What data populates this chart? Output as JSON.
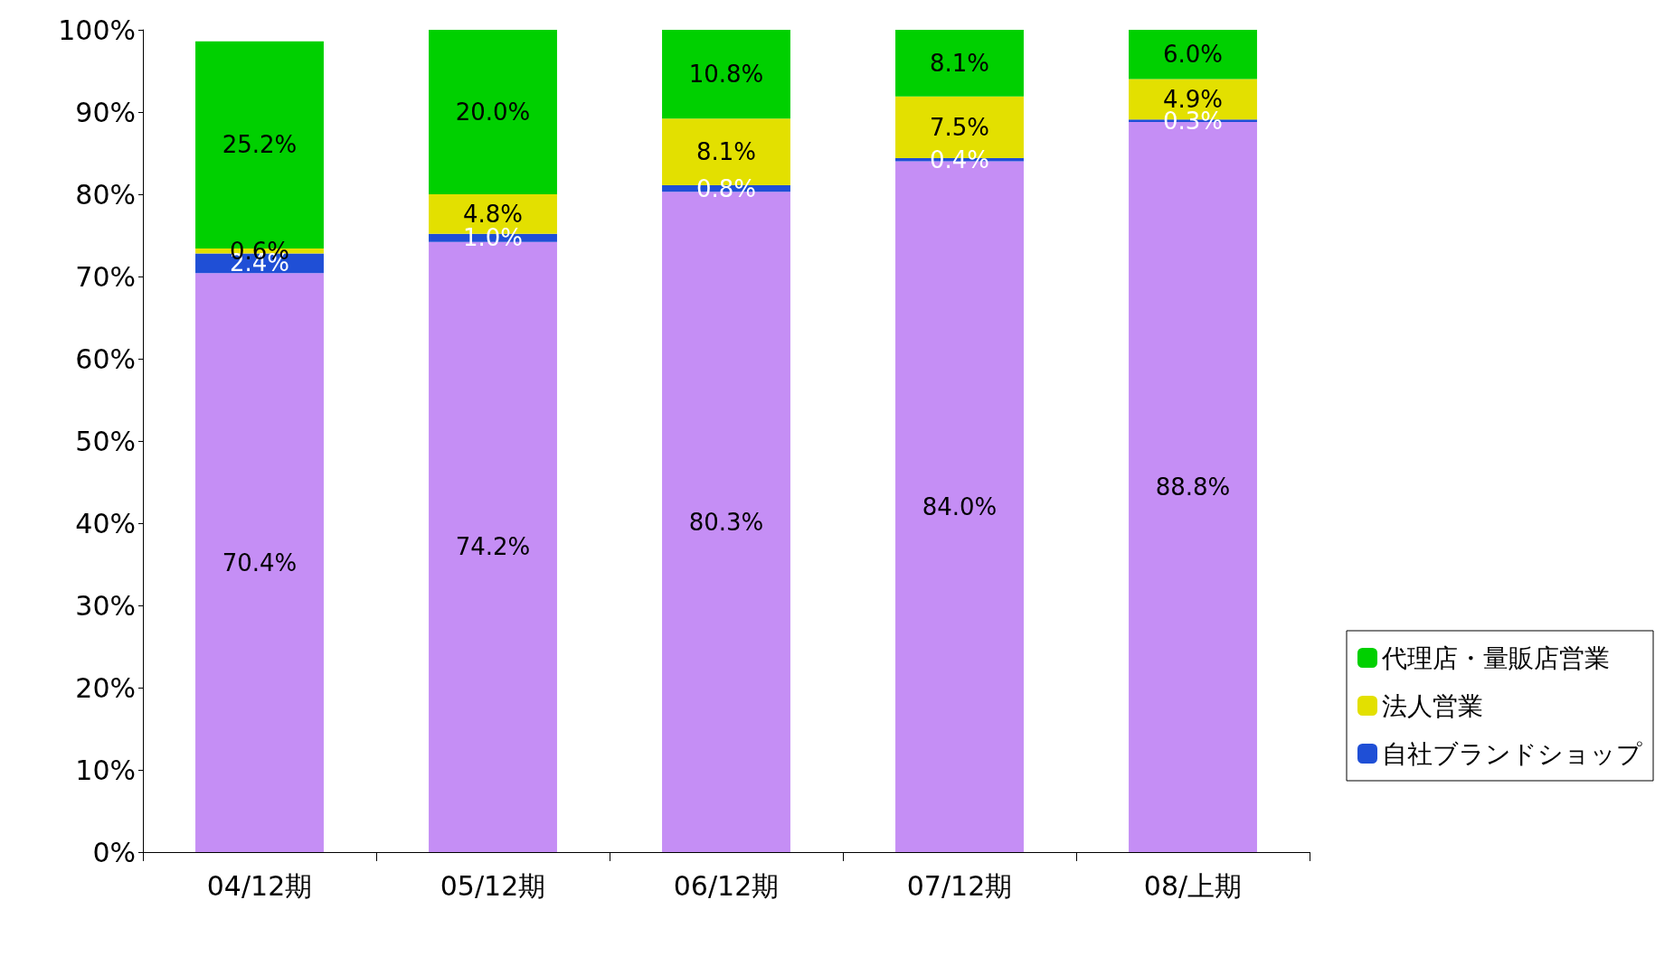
{
  "chart_data": {
    "type": "bar",
    "stacked": true,
    "categories": [
      "04/12期",
      "05/12期",
      "06/12期",
      "07/12期",
      "08/上期"
    ],
    "series": [
      {
        "color": "#c58ef5",
        "values": [
          70.4,
          74.2,
          80.3,
          84.0,
          88.8
        ],
        "value_labels": [
          "70.4%",
          "74.2%",
          "80.3%",
          "84.0%",
          "88.8%"
        ]
      },
      {
        "name": "自社ブランドショップ",
        "color": "#1f4fd6",
        "values": [
          2.4,
          1.0,
          0.8,
          0.4,
          0.3
        ],
        "value_labels": [
          "2.4%",
          "1.0%",
          "0.8%",
          "0.4%",
          "0.3%"
        ]
      },
      {
        "name": "法人営業",
        "color": "#e3e000",
        "values": [
          0.6,
          4.8,
          8.1,
          7.5,
          4.9
        ],
        "value_labels": [
          "0.6%",
          "4.8%",
          "8.1%",
          "7.5%",
          "4.9%"
        ]
      },
      {
        "name": "代理店・量販店営業",
        "color": "#00d000",
        "values": [
          25.2,
          20.0,
          10.8,
          8.1,
          6.0
        ],
        "value_labels": [
          "25.2%",
          "20.0%",
          "10.8%",
          "8.1%",
          "6.0%"
        ]
      }
    ],
    "ylim": [
      0,
      100
    ],
    "yticks": [
      {
        "value": 0,
        "label": "0%"
      },
      {
        "value": 10,
        "label": "10%"
      },
      {
        "value": 20,
        "label": "20%"
      },
      {
        "value": 30,
        "label": "30%"
      },
      {
        "value": 40,
        "label": "40%"
      },
      {
        "value": 50,
        "label": "50%"
      },
      {
        "value": 60,
        "label": "60%"
      },
      {
        "value": 70,
        "label": "70%"
      },
      {
        "value": 80,
        "label": "80%"
      },
      {
        "value": 90,
        "label": "90%"
      },
      {
        "value": 100,
        "label": "100%"
      }
    ],
    "grid": false,
    "legend": "right"
  }
}
